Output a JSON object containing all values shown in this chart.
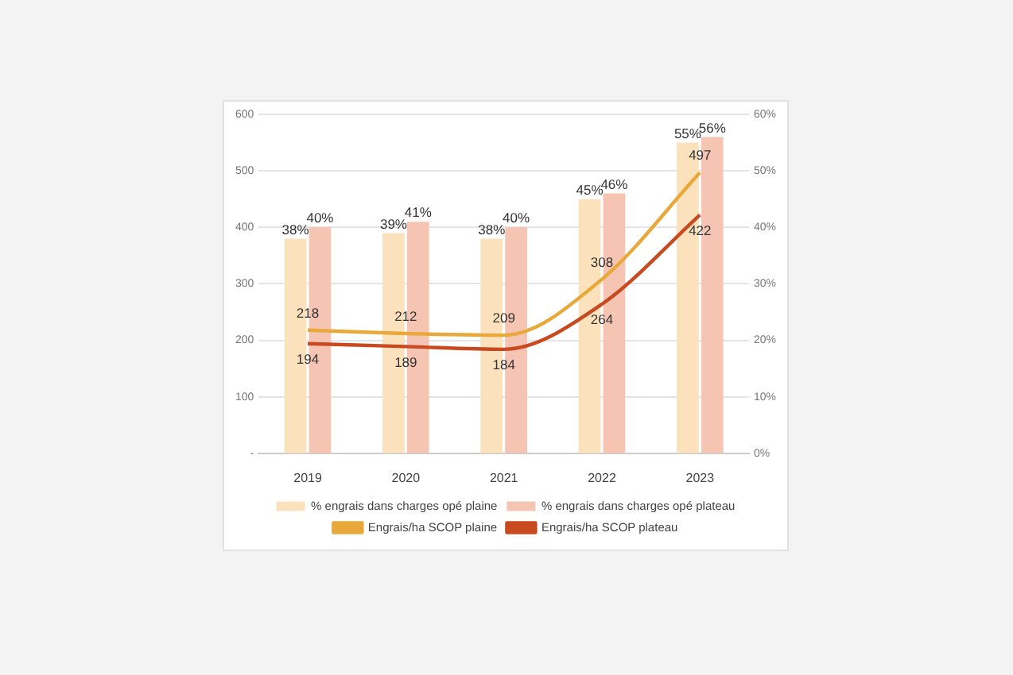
{
  "chart_data": {
    "type": "bar",
    "categories": [
      "2019",
      "2020",
      "2021",
      "2022",
      "2023"
    ],
    "series": [
      {
        "name": "% engrais dans charges opé plaine",
        "axis": "y2",
        "color": "#fbe2bd",
        "values": [
          38,
          39,
          38,
          45,
          55
        ],
        "value_labels": [
          "38%",
          "39%",
          "38%",
          "45%",
          "55%"
        ]
      },
      {
        "name": "% engrais dans charges opé plateau",
        "axis": "y2",
        "color": "#f6c4b2",
        "values": [
          40,
          41,
          40,
          46,
          56
        ],
        "value_labels": [
          "40%",
          "41%",
          "40%",
          "46%",
          "56%"
        ]
      },
      {
        "name": "Engrais/ha SCOP plaine",
        "type": "line",
        "color": "#e8a93a",
        "values": [
          218,
          212,
          209,
          308,
          497
        ],
        "value_labels": [
          "218",
          "212",
          "209",
          "308",
          "497"
        ]
      },
      {
        "name": "Engrais/ha SCOP plateau",
        "type": "line",
        "color": "#c94a20",
        "values": [
          194,
          189,
          184,
          264,
          422
        ],
        "value_labels": [
          "194",
          "189",
          "184",
          "264",
          "422"
        ]
      }
    ],
    "ylim": [
      0,
      600
    ],
    "yticks": [
      {
        "value": 0,
        "label": "-"
      },
      100,
      200,
      300,
      400,
      500,
      600
    ],
    "y2lim": [
      0,
      60
    ],
    "y2ticks": [
      {
        "value": 0,
        "label": "0%"
      },
      {
        "value": 10,
        "label": "10%"
      },
      {
        "value": 20,
        "label": "20%"
      },
      {
        "value": 30,
        "label": "30%"
      },
      {
        "value": 40,
        "label": "40%"
      },
      {
        "value": 50,
        "label": "50%"
      },
      {
        "value": 60,
        "label": "60%"
      }
    ],
    "grid": "y",
    "legend": "bottom",
    "marker": "none"
  }
}
